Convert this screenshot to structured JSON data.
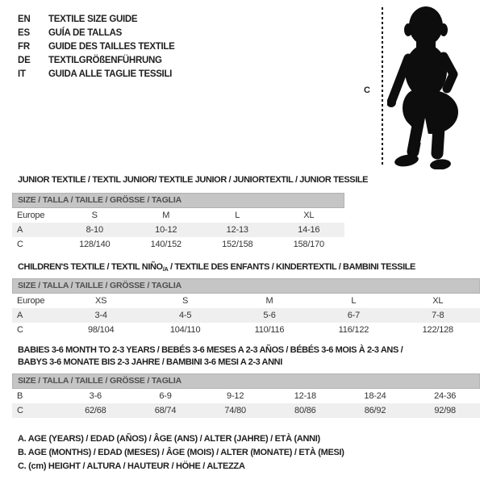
{
  "colors": {
    "ink": "#1f1f1f",
    "cell_text": "#333333",
    "bar_bg": "#c5c5c5",
    "bar_text": "#4f4f4f",
    "stripe": "#efefef",
    "silhouette": "#0d0d0d",
    "page_bg": "#ffffff"
  },
  "languages": [
    {
      "code": "EN",
      "label": "TEXTILE SIZE GUIDE"
    },
    {
      "code": "ES",
      "label": "GUÍA DE TALLAS"
    },
    {
      "code": "FR",
      "label": "GUIDE DES TAILLES TEXTILE"
    },
    {
      "code": "DE",
      "label": "TEXTILGRÖßENFÜHRUNG"
    },
    {
      "code": "IT",
      "label": "GUIDA ALLE TAGLIE TESSILI"
    }
  ],
  "figure": {
    "height_label": "C",
    "silhouette_icon": "toddler-silhouette-icon"
  },
  "tables": [
    {
      "title": "JUNIOR TEXTILE / TEXTIL JUNIOR/ TEXTILE JUNIOR / JUNIORTEXTIL / JUNIOR TESSILE",
      "size_bar": "SIZE / TALLA / TAILLE / GRÖSSE / TAGLIA",
      "rows": [
        {
          "label": "Europe",
          "values": [
            "S",
            "M",
            "L",
            "XL"
          ],
          "striped": false
        },
        {
          "label": "A",
          "values": [
            "8-10",
            "10-12",
            "12-13",
            "14-16"
          ],
          "striped": true
        },
        {
          "label": "C",
          "values": [
            "128/140",
            "140/152",
            "152/158",
            "158/170"
          ],
          "striped": false
        }
      ]
    },
    {
      "title_pre": "CHILDREN'S TEXTILE / TEXTIL NIÑO",
      "title_sub": "/A",
      "title_post": " / TEXTILE DES ENFANTS / KINDERTEXTIL / BAMBINI TESSILE",
      "size_bar": "SIZE / TALLA / TAILLE / GRÖSSE / TAGLIA",
      "rows": [
        {
          "label": "Europe",
          "values": [
            "XS",
            "S",
            "M",
            "L",
            "XL"
          ],
          "striped": false
        },
        {
          "label": "A",
          "values": [
            "3-4",
            "4-5",
            "5-6",
            "6-7",
            "7-8"
          ],
          "striped": true
        },
        {
          "label": "C",
          "values": [
            "98/104",
            "104/110",
            "110/116",
            "116/122",
            "122/128"
          ],
          "striped": false
        }
      ]
    },
    {
      "title_line1": "BABIES 3-6 MONTH TO 2-3 YEARS / BEBÉS 3-6 MESES A 2-3 AÑOS / BÉBÉS 3-6 MOIS À 2-3 ANS /",
      "title_line2": "BABYS 3-6 MONATE BIS 2-3 JAHRE / BAMBINI 3-6 MESI A 2-3 ANNI",
      "size_bar": "SIZE / TALLA / TAILLE / GRÖSSE / TAGLIA",
      "rows": [
        {
          "label": "B",
          "values": [
            "3-6",
            "6-9",
            "9-12",
            "12-18",
            "18-24",
            "24-36"
          ],
          "striped": false
        },
        {
          "label": "C",
          "values": [
            "62/68",
            "68/74",
            "74/80",
            "80/86",
            "86/92",
            "92/98"
          ],
          "striped": true
        }
      ]
    }
  ],
  "notes": [
    "A. AGE (YEARS) / EDAD (AÑOS) / ÂGE (ANS) / ALTER (JAHRE) / ETÀ (ANNI)",
    "B. AGE (MONTHS) / EDAD (MESES) / ÂGE (MOIS) / ALTER (MONATE) / ETÀ (MESI)",
    "C. (cm) HEIGHT / ALTURA / HAUTEUR / HÖHE / ALTEZZA"
  ]
}
